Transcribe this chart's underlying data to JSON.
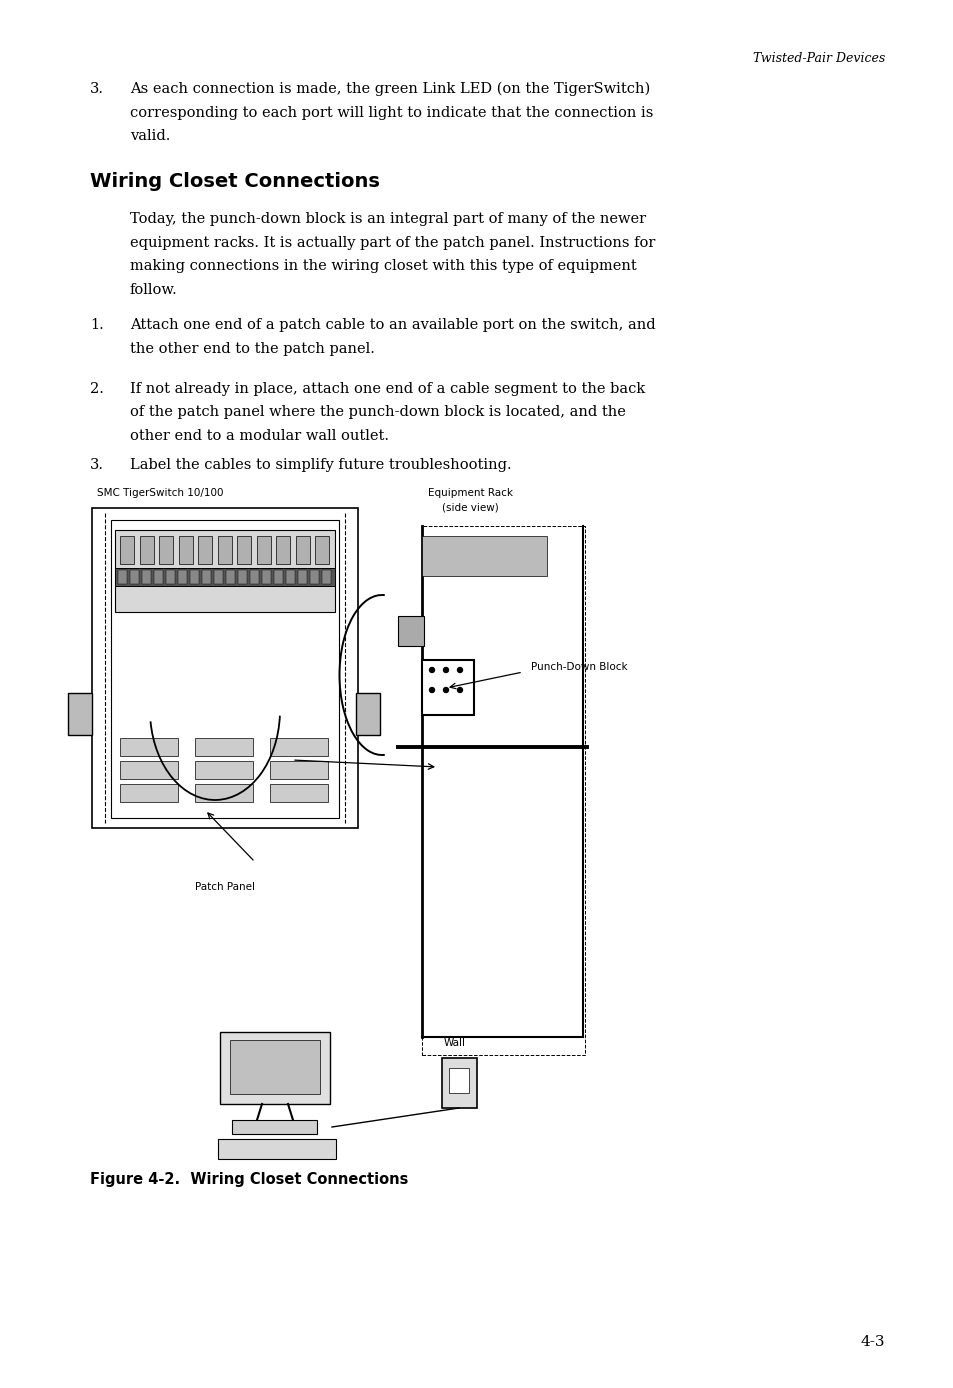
{
  "bg_color": "#ffffff",
  "page_width": 9.54,
  "page_height": 13.88,
  "header_text": "Twisted-Pair Devices",
  "section_title": "Wiring Closet Connections",
  "intro_item3_num": "3.",
  "intro_line1": "As each connection is made, the green Link LED (on the TigerSwitch)",
  "intro_line2": "corresponding to each port will light to indicate that the connection is",
  "intro_line3": "valid.",
  "para_lines": [
    "Today, the punch-down block is an integral part of many of the newer",
    "equipment racks. It is actually part of the patch panel. Instructions for",
    "making connections in the wiring closet with this type of equipment",
    "follow."
  ],
  "item1_num": "1.",
  "item1_lines": [
    "Attach one end of a patch cable to an available port on the switch, and",
    "the other end to the patch panel."
  ],
  "item2_num": "2.",
  "item2_lines": [
    "If not already in place, attach one end of a cable segment to the back",
    "of the patch panel where the punch-down block is located, and the",
    "other end to a modular wall outlet."
  ],
  "item3_num": "3.",
  "item3_text": "Label the cables to simplify future troubleshooting.",
  "diag_label_left": "SMC TigerSwitch 10/100",
  "diag_label_right1": "Equipment Rack",
  "diag_label_right2": "(side view)",
  "label_patch_panel": "Patch Panel",
  "label_punch_down": "Punch-Down Block",
  "label_wall": "Wall",
  "fig_caption": "Figure 4-2.  Wiring Closet Connections",
  "page_num": "4-3"
}
